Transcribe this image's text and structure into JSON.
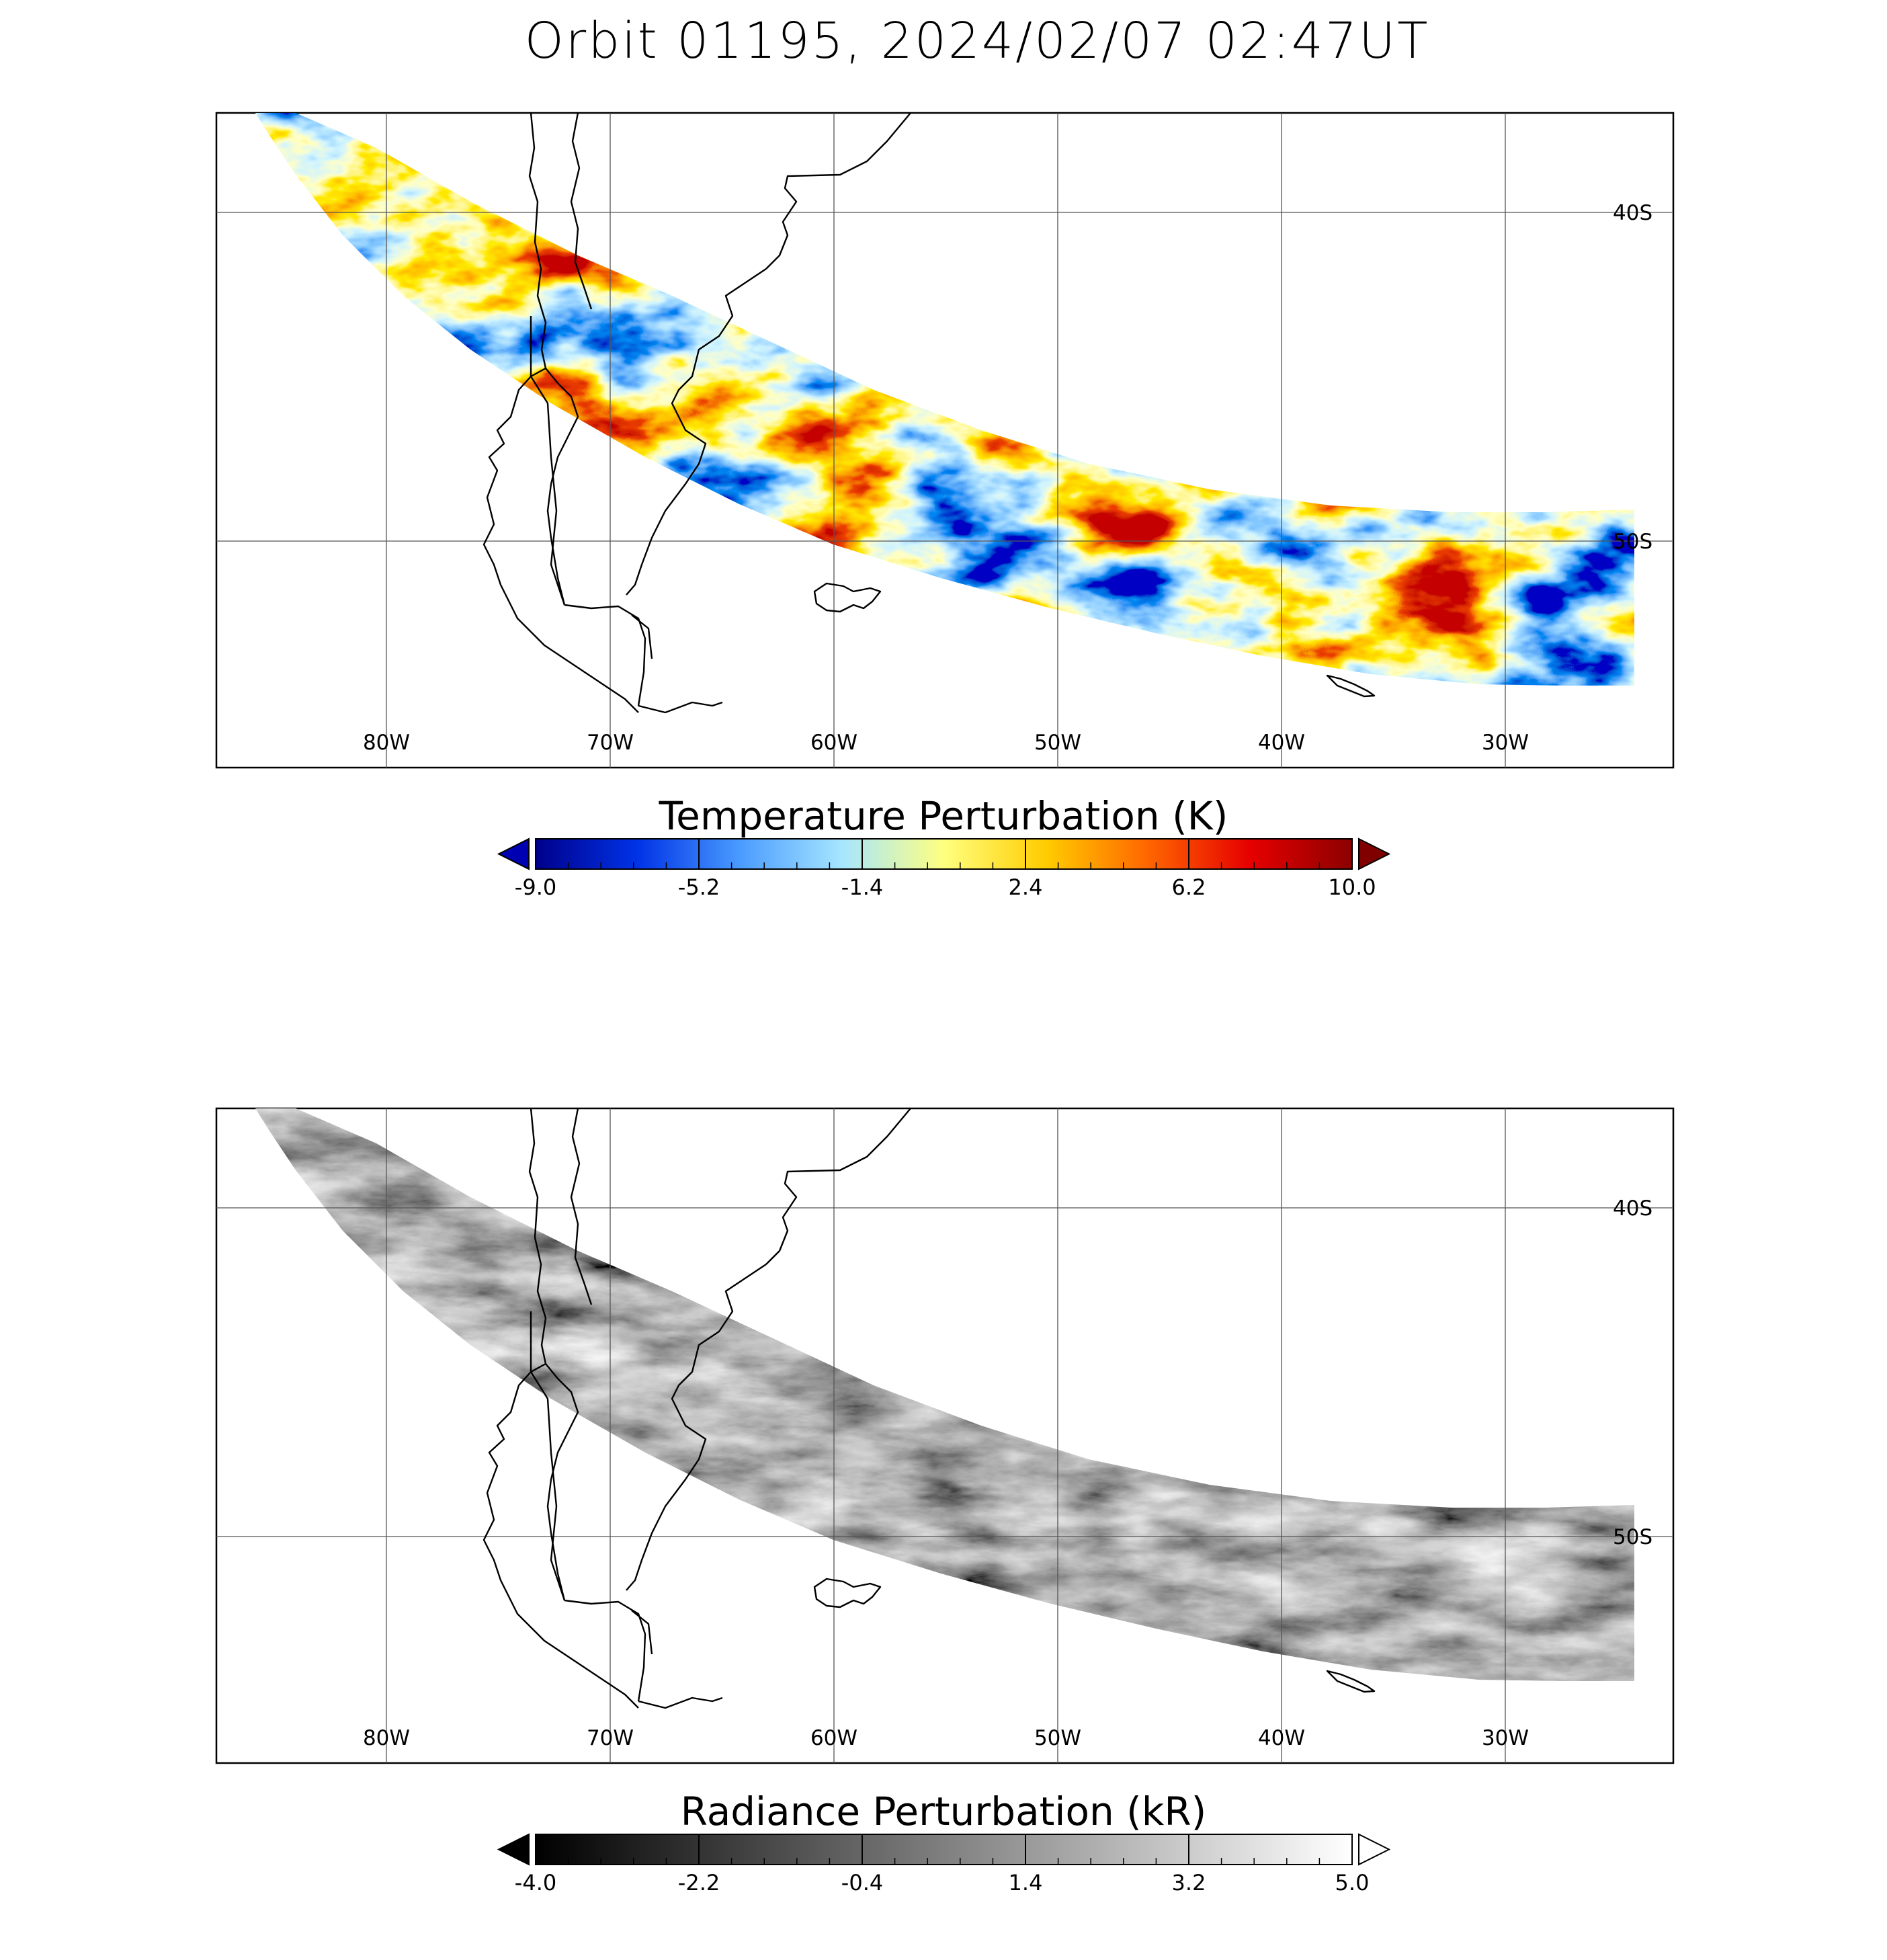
{
  "title": "Orbit 01195, 2024/02/07 02:47UT",
  "map": {
    "lon_labels": [
      "80W",
      "70W",
      "60W",
      "50W",
      "40W",
      "30W"
    ],
    "lon_values": [
      -80,
      -70,
      -60,
      -50,
      -40,
      -30
    ],
    "lat_labels": [
      "40S",
      "50S"
    ],
    "lat_values": [
      -40,
      -50
    ],
    "lon_range": [
      -87.5,
      -22.5
    ],
    "lat_range": [
      -37.0,
      -57.0
    ]
  },
  "panels": [
    {
      "id": "temperature",
      "colorbar_title": "Temperature Perturbation (K)",
      "tick_labels": [
        "-9.0",
        "-5.2",
        "-1.4",
        "2.4",
        "6.2",
        "10.0"
      ],
      "range": [
        -9.0,
        10.0
      ],
      "colormap": "blue-cyan-yellow-red",
      "colors": [
        "#00008c",
        "#0033e6",
        "#4a9bff",
        "#a6e6ff",
        "#ffff80",
        "#ffcc00",
        "#ff6600",
        "#e60000",
        "#8c0000"
      ],
      "under_color": "#0000b3",
      "over_color": "#800000"
    },
    {
      "id": "radiance",
      "colorbar_title": "Radiance Perturbation (kR)",
      "tick_labels": [
        "-4.0",
        "-2.2",
        "-0.4",
        "1.4",
        "3.2",
        "5.0"
      ],
      "range": [
        -4.0,
        5.0
      ],
      "colormap": "grayscale",
      "colors": [
        "#000000",
        "#ffffff"
      ],
      "under_color": "#000000",
      "over_color": "#ffffff"
    }
  ]
}
